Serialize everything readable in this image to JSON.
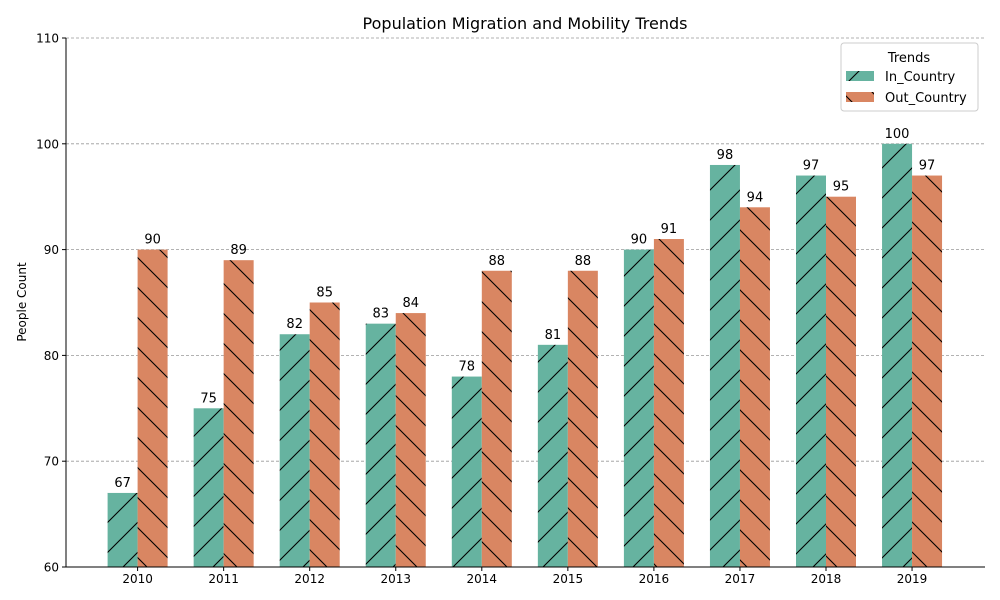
{
  "chart_data": {
    "type": "bar",
    "title": "Population Migration and Mobility Trends",
    "xlabel": "",
    "ylabel": "People Count",
    "categories": [
      "2010",
      "2011",
      "2012",
      "2013",
      "2014",
      "2015",
      "2016",
      "2017",
      "2018",
      "2019"
    ],
    "series": [
      {
        "name": "In_Country",
        "color": "#66b3a0",
        "hatch": "/",
        "values": [
          67,
          75,
          82,
          83,
          78,
          81,
          90,
          98,
          97,
          100
        ]
      },
      {
        "name": "Out_Country",
        "color": "#d98662",
        "hatch": "\\",
        "values": [
          90,
          89,
          85,
          84,
          88,
          88,
          91,
          94,
          95,
          97
        ]
      }
    ],
    "ylim": [
      60,
      110
    ],
    "yticks": [
      60,
      70,
      80,
      90,
      100,
      110
    ],
    "grid": true,
    "legend": {
      "title": "Trends",
      "position": "top-right"
    },
    "data_labels": true
  }
}
